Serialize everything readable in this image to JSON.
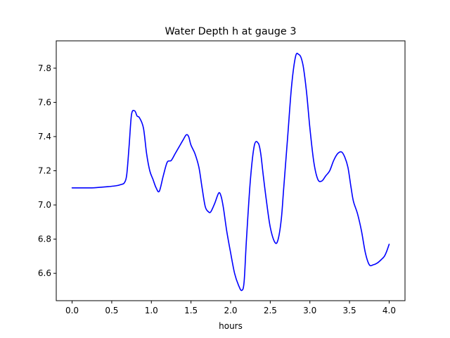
{
  "chart_data": {
    "type": "line",
    "title": "Water Depth h at gauge 3",
    "xlabel": "hours",
    "ylabel": "",
    "xlim": [
      -0.2,
      4.2
    ],
    "ylim": [
      6.44,
      7.96
    ],
    "xticks": [
      0.0,
      0.5,
      1.0,
      1.5,
      2.0,
      2.5,
      3.0,
      3.5,
      4.0
    ],
    "xtick_labels": [
      "0.0",
      "0.5",
      "1.0",
      "1.5",
      "2.0",
      "2.5",
      "3.0",
      "3.5",
      "4.0"
    ],
    "yticks": [
      6.6,
      6.8,
      7.0,
      7.2,
      7.4,
      7.6,
      7.8
    ],
    "ytick_labels": [
      "6.6",
      "6.8",
      "7.0",
      "7.2",
      "7.4",
      "7.6",
      "7.8"
    ],
    "grid": false,
    "series": [
      {
        "color": "#0000ff",
        "x": [
          0.0,
          0.1,
          0.25,
          0.4,
          0.55,
          0.62,
          0.66,
          0.69,
          0.72,
          0.75,
          0.79,
          0.82,
          0.85,
          0.9,
          0.94,
          0.98,
          1.02,
          1.06,
          1.1,
          1.15,
          1.2,
          1.25,
          1.3,
          1.35,
          1.4,
          1.44,
          1.47,
          1.5,
          1.55,
          1.6,
          1.64,
          1.68,
          1.72,
          1.75,
          1.8,
          1.85,
          1.88,
          1.91,
          1.95,
          2.0,
          2.05,
          2.1,
          2.14,
          2.17,
          2.2,
          2.25,
          2.3,
          2.35,
          2.38,
          2.41,
          2.45,
          2.5,
          2.56,
          2.6,
          2.64,
          2.67,
          2.72,
          2.77,
          2.82,
          2.86,
          2.89,
          2.92,
          2.96,
          3.0,
          3.05,
          3.1,
          3.15,
          3.2,
          3.25,
          3.3,
          3.35,
          3.4,
          3.44,
          3.48,
          3.52,
          3.55,
          3.6,
          3.65,
          3.7,
          3.75,
          3.8,
          3.85,
          3.9,
          3.94,
          3.97,
          4.0
        ],
        "values": [
          7.1,
          7.1,
          7.1,
          7.105,
          7.112,
          7.12,
          7.13,
          7.18,
          7.35,
          7.53,
          7.55,
          7.52,
          7.51,
          7.45,
          7.3,
          7.2,
          7.15,
          7.1,
          7.08,
          7.17,
          7.25,
          7.26,
          7.3,
          7.34,
          7.38,
          7.41,
          7.4,
          7.35,
          7.3,
          7.22,
          7.1,
          6.99,
          6.96,
          6.96,
          7.01,
          7.07,
          7.05,
          6.98,
          6.85,
          6.72,
          6.6,
          6.53,
          6.5,
          6.55,
          6.8,
          7.15,
          7.35,
          7.36,
          7.3,
          7.18,
          7.03,
          6.87,
          6.78,
          6.8,
          6.92,
          7.1,
          7.4,
          7.7,
          7.87,
          7.88,
          7.86,
          7.8,
          7.65,
          7.45,
          7.25,
          7.15,
          7.14,
          7.17,
          7.2,
          7.26,
          7.3,
          7.31,
          7.28,
          7.22,
          7.1,
          7.02,
          6.95,
          6.85,
          6.72,
          6.65,
          6.65,
          6.66,
          6.68,
          6.7,
          6.73,
          6.77
        ]
      }
    ]
  }
}
